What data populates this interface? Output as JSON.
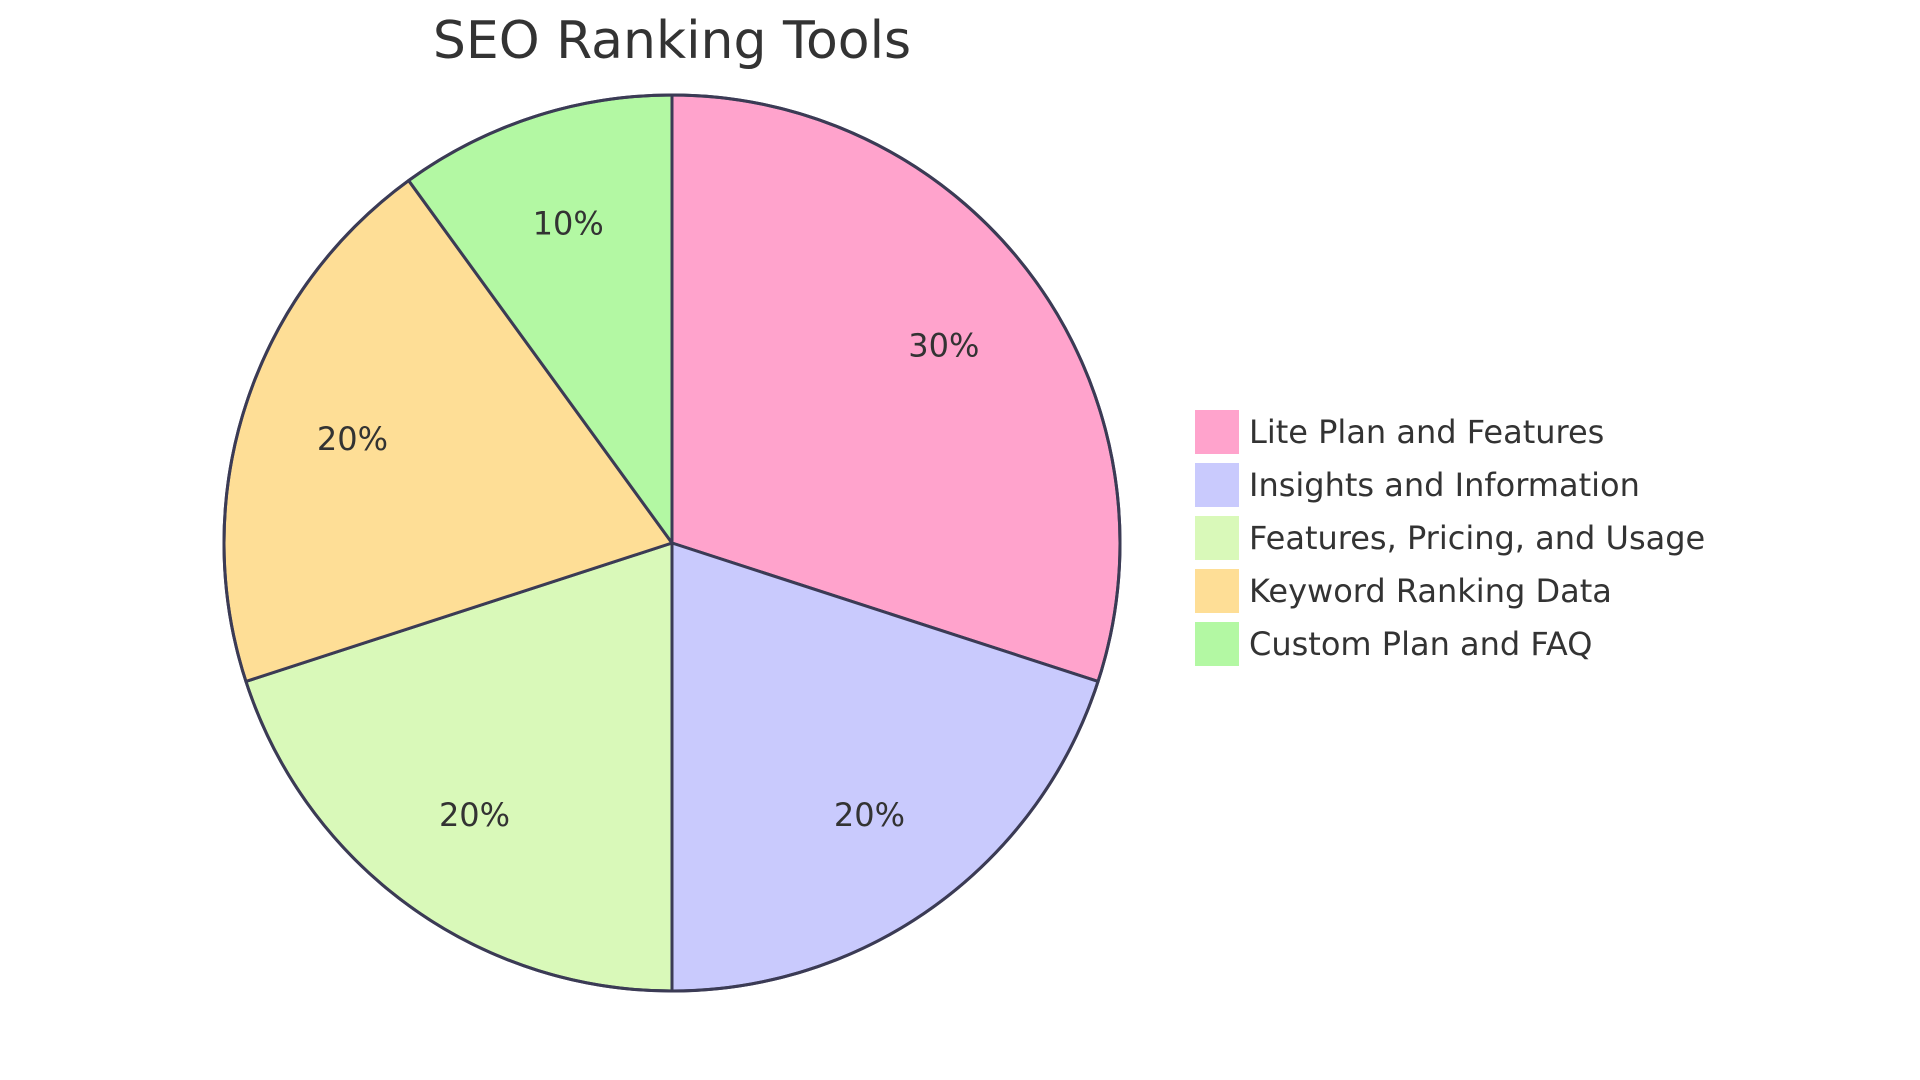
{
  "chart_data": {
    "type": "pie",
    "title": "SEO Ranking Tools",
    "categories": [
      "Lite Plan and Features",
      "Insights and Information",
      "Features, Pricing, and Usage",
      "Keyword Ranking Data",
      "Custom Plan and FAQ"
    ],
    "values": [
      30,
      20,
      20,
      20,
      10
    ],
    "labels": [
      "30%",
      "20%",
      "20%",
      "20%",
      "10%"
    ],
    "colors": [
      "#ffa3cc",
      "#c9cafd",
      "#d9f9b9",
      "#fede96",
      "#b3f8a3"
    ],
    "stroke_color": "#3b3b55",
    "legend_position": "right"
  }
}
